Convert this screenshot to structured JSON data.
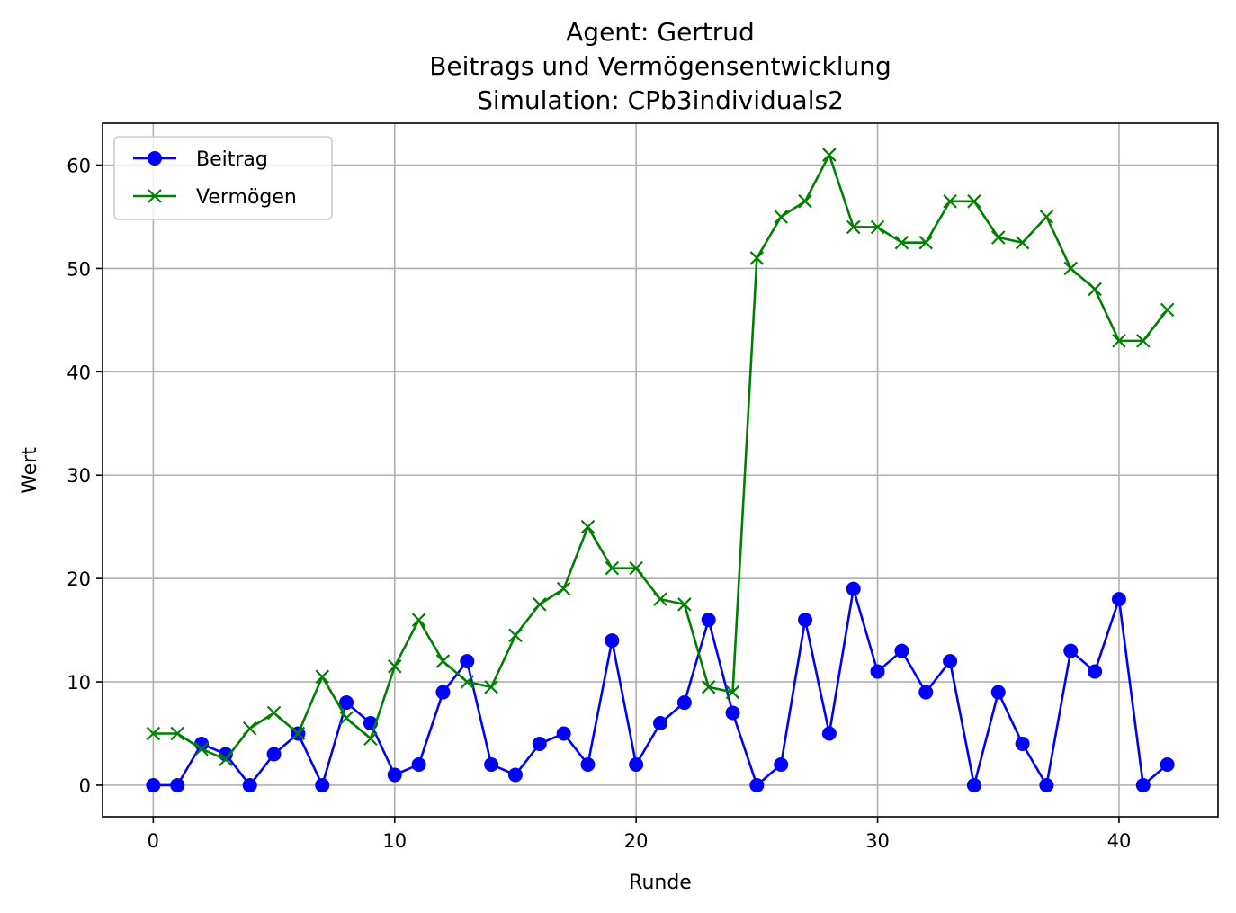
{
  "chart_data": {
    "type": "line",
    "title": [
      "Agent: Gertrud",
      "Beitrags und Vermögensentwicklung",
      "Simulation: CPb3individuals2"
    ],
    "xlabel": "Runde",
    "ylabel": "Wert",
    "xlim": [
      -2.1,
      44.1
    ],
    "ylim": [
      -3.05,
      64.05
    ],
    "xticks": [
      0,
      10,
      20,
      30,
      40
    ],
    "yticks": [
      0,
      10,
      20,
      30,
      40,
      50,
      60
    ],
    "grid": true,
    "legend_position": "top-left",
    "x": [
      0,
      1,
      2,
      3,
      4,
      5,
      6,
      7,
      8,
      9,
      10,
      11,
      12,
      13,
      14,
      15,
      16,
      17,
      18,
      19,
      20,
      21,
      22,
      23,
      24,
      25,
      26,
      27,
      28,
      29,
      30,
      31,
      32,
      33,
      34,
      35,
      36,
      37,
      38,
      39,
      40,
      41,
      42
    ],
    "series": [
      {
        "name": "Beitrag",
        "color": "#0000ff",
        "marker": "circle",
        "values": [
          0,
          0,
          4,
          3,
          0,
          3,
          5,
          0,
          8,
          6,
          1,
          2,
          9,
          12,
          2,
          1,
          4,
          5,
          2,
          14,
          2,
          6,
          8,
          16,
          7,
          0,
          2,
          16,
          5,
          19,
          11,
          13,
          9,
          12,
          0,
          9,
          4,
          0,
          13,
          11,
          18,
          0,
          2
        ]
      },
      {
        "name": "Vermögen",
        "color": "#008000",
        "marker": "x",
        "values": [
          5,
          5,
          3.5,
          2.5,
          5.5,
          7,
          5,
          10.5,
          6.5,
          4.5,
          11.5,
          16,
          12,
          10,
          9.5,
          14.5,
          17.5,
          19,
          25,
          21,
          21,
          18,
          17.5,
          9.5,
          9,
          51,
          55,
          56.5,
          61,
          54,
          54,
          52.5,
          52.5,
          56.5,
          56.5,
          53,
          52.5,
          55,
          50,
          48,
          43,
          43,
          46
        ]
      }
    ]
  }
}
